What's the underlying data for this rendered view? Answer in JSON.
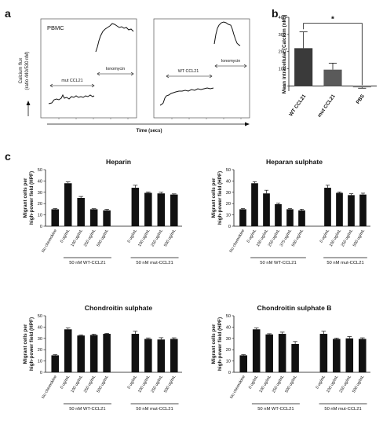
{
  "panel_labels": [
    "a",
    "b",
    "c"
  ],
  "colors": {
    "ink": "#111111",
    "bar": "#111111",
    "bar_b_dark": "#3a3a3a",
    "bar_b_mid": "#5a5a5a",
    "bar_b_light": "#8a8a8a"
  },
  "panel_a": {
    "ylabel_line1": "Calcium flux",
    "ylabel_line2": "(ratio 440/530 nM)",
    "xlabel": "Time (secs)",
    "left_plot": {
      "tag": "PBMC",
      "chemokine_label": "mut CCL21",
      "ionomycin_label": "Ionomycin"
    },
    "right_plot": {
      "chemokine_label": "WT CCL21",
      "ionomycin_label": "Ionomycin"
    }
  },
  "panel_b_cd": {
    "chart_data": [
      {
        "type": "bar",
        "panel": "b",
        "categories": [
          "WT CCL21",
          "mut CCL21",
          "PBS"
        ],
        "values": [
          220,
          95,
          -8
        ],
        "errors": [
          95,
          38,
          5
        ],
        "ylabel": "Mean intracellular [Calcium (nM)]",
        "ylim": [
          -30,
          400
        ],
        "yticks": [
          0,
          100,
          200,
          300,
          400
        ],
        "significance": "*"
      },
      {
        "type": "bar",
        "panel": "c",
        "title": "Heparin",
        "ylabel": "Migrant cells per high-power field (HPF)",
        "ylim": [
          0,
          50
        ],
        "yticks": [
          0,
          10,
          20,
          30,
          40,
          50
        ],
        "categories": [
          "No chemokine",
          "0 ug/mL",
          "100 ug/mL",
          "250 ug/mL",
          "500 ug/mL",
          "0 ug/mL",
          "100 ug/mL",
          "250 ug/mL",
          "500 ug/mL"
        ],
        "values": [
          15,
          38,
          25,
          15,
          14,
          34,
          29.5,
          29,
          28
        ],
        "errors": [
          0.6,
          1.2,
          1.3,
          0.5,
          1,
          2.2,
          0.8,
          1,
          0.6
        ],
        "groups": [
          {
            "label": "50 nM WT-CCL21",
            "start": 1,
            "end": 4
          },
          {
            "label": "50 nM mut-CCL21",
            "start": 5,
            "end": 8
          }
        ]
      },
      {
        "type": "bar",
        "panel": "c",
        "title": "Heparan sulphate",
        "ylabel": "Migrant cells per high-power field (HPF)",
        "ylim": [
          0,
          50
        ],
        "yticks": [
          0,
          10,
          20,
          30,
          40,
          50
        ],
        "categories": [
          "No chemokine",
          "0 ug/mL",
          "100 ug/mL",
          "250 ug/mL",
          "375 ug/mL",
          "500 ug/mL",
          "0 ug/mL",
          "100 ug/mL",
          "250 ug/mL",
          "500 ug/mL"
        ],
        "values": [
          15,
          38,
          29,
          19.5,
          15,
          14,
          34,
          29.5,
          27.5,
          28
        ],
        "errors": [
          0.6,
          1.3,
          2.8,
          0.8,
          0.6,
          1,
          2.2,
          0.7,
          1.2,
          1.2
        ],
        "groups": [
          {
            "label": "50 nM WT-CCL21",
            "start": 1,
            "end": 5
          },
          {
            "label": "50 nM mut-CCL21",
            "start": 6,
            "end": 9
          }
        ]
      },
      {
        "type": "bar",
        "panel": "c",
        "title": "Chondroitin sulphate",
        "ylabel": "Migrant cells per high-power field (HPF)",
        "ylim": [
          0,
          50
        ],
        "yticks": [
          0,
          10,
          20,
          30,
          40,
          50
        ],
        "categories": [
          "No chemokine",
          "0 ug/mL",
          "100 ug/mL",
          "250 ug/mL",
          "500 ug/mL",
          "0 ug/mL",
          "100 ug/mL",
          "250 ug/mL",
          "500 ug/mL"
        ],
        "values": [
          15,
          38,
          32.5,
          33,
          34,
          34,
          29.5,
          29,
          29.5
        ],
        "errors": [
          0.6,
          1.2,
          0.6,
          0.7,
          0.5,
          2.3,
          0.9,
          1.6,
          1
        ],
        "groups": [
          {
            "label": "50 nM WT-CCL21",
            "start": 1,
            "end": 4
          },
          {
            "label": "50 nM mut-CCL21",
            "start": 5,
            "end": 8
          }
        ]
      },
      {
        "type": "bar",
        "panel": "c",
        "title": "Chondroitin sulphate B",
        "ylabel": "Migrant cells per high-power field (HPF)",
        "ylim": [
          0,
          50
        ],
        "yticks": [
          0,
          10,
          20,
          30,
          40,
          50
        ],
        "categories": [
          "No chemokine",
          "0 ug/mL",
          "100 ug/mL",
          "250 ug/mL",
          "500 ug/mL",
          "0 ug/mL",
          "100 ug/mL",
          "250 ug/mL",
          "500 ug/mL"
        ],
        "values": [
          15,
          38,
          33.5,
          34,
          25,
          34,
          29.5,
          30,
          29.5
        ],
        "errors": [
          0.6,
          1.2,
          0.6,
          1.5,
          2.2,
          2.3,
          0.8,
          1.6,
          1
        ],
        "groups": [
          {
            "label": "50 nM WT-CCL21",
            "start": 1,
            "end": 4
          },
          {
            "label": "50 nM mut-CCL21",
            "start": 5,
            "end": 8
          }
        ]
      }
    ]
  }
}
